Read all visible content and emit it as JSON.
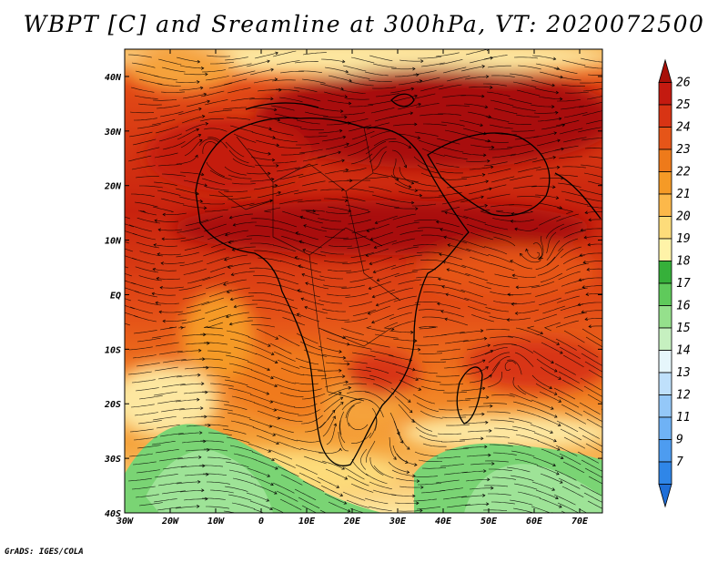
{
  "title": "WBPT [C] and Sreamline at 300hPa, VT: 2020072500",
  "credit": "GrADS: IGES/COLA",
  "map": {
    "lon_ticks": [
      "30W",
      "20W",
      "10W",
      "0",
      "10E",
      "20E",
      "30E",
      "40E",
      "50E",
      "60E",
      "70E"
    ],
    "lat_ticks": [
      "40N",
      "30N",
      "20N",
      "10N",
      "EQ",
      "10S",
      "20S",
      "30S",
      "40S"
    ],
    "lon_range": [
      -30,
      75
    ],
    "lat_range": [
      -40,
      45
    ]
  },
  "colorbar": {
    "labels": [
      "7",
      "9",
      "11",
      "12",
      "13",
      "14",
      "15",
      "16",
      "17",
      "18",
      "19",
      "20",
      "21",
      "22",
      "23",
      "24",
      "25",
      "26"
    ],
    "colors": [
      "#1f6fd8",
      "#2f86e8",
      "#4d9cf0",
      "#6fb2f5",
      "#94c8f8",
      "#bfe0fb",
      "#e6f6fb",
      "#c6f0c0",
      "#95e08c",
      "#5fca5b",
      "#36b03a",
      "#fff3a8",
      "#fddc7a",
      "#fcb84a",
      "#f59a26",
      "#ee7a1a",
      "#e65518",
      "#d83414",
      "#c41a10",
      "#a81008"
    ]
  },
  "field_colors": {
    "hot": "#b81a0c",
    "warm": "#e24a16",
    "orange": "#f07a1f",
    "amber": "#f5a23a",
    "yellow": "#fde7a0",
    "green": "#6fd06a",
    "lightgreen": "#a8e6a0"
  }
}
